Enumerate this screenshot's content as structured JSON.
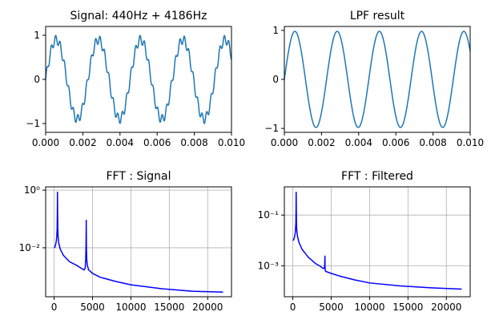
{
  "chart_data": [
    {
      "type": "line",
      "title": "Signal: 440Hz + 4186Hz",
      "xlabel": "",
      "ylabel": "",
      "xlim": [
        0,
        0.01
      ],
      "ylim": [
        -1.2,
        1.2
      ],
      "y_scale": "linear",
      "grid": false,
      "color": "#1f77b4",
      "x_ticks": [
        0,
        0.002,
        0.004,
        0.006,
        0.008,
        0.01
      ],
      "x_tick_labels": [
        "0.000",
        "0.002",
        "0.004",
        "0.006",
        "0.008",
        "0.010"
      ],
      "y_ticks": [
        -1,
        0,
        1
      ],
      "y_tick_labels": [
        "−1",
        "0",
        "1"
      ],
      "series": [
        {
          "components": [
            {
              "freq_hz": 440,
              "amplitude": 0.9
            },
            {
              "freq_hz": 4186,
              "amplitude": 0.1
            }
          ]
        }
      ]
    },
    {
      "type": "line",
      "title": "LPF result",
      "xlabel": "",
      "ylabel": "",
      "xlim": [
        0,
        0.01
      ],
      "ylim": [
        -1.08,
        1.08
      ],
      "y_scale": "linear",
      "grid": false,
      "color": "#1f77b4",
      "x_ticks": [
        0,
        0.002,
        0.004,
        0.006,
        0.008,
        0.01
      ],
      "x_tick_labels": [
        "0.000",
        "0.002",
        "0.004",
        "0.006",
        "0.008",
        "0.010"
      ],
      "y_ticks": [
        -1,
        0,
        1
      ],
      "y_tick_labels": [
        "−1",
        "0",
        "1"
      ],
      "series": [
        {
          "components": [
            {
              "freq_hz": 440,
              "amplitude": 0.98
            }
          ]
        }
      ]
    },
    {
      "type": "line",
      "title": "FFT : Signal",
      "xlabel": "",
      "ylabel": "",
      "xlim": [
        -1100,
        23100
      ],
      "ylim": [
        0.0002,
        1.3
      ],
      "y_scale": "log",
      "grid": true,
      "color": "#0000ff",
      "x_ticks": [
        0,
        5000,
        10000,
        15000,
        20000
      ],
      "x_tick_labels": [
        "0",
        "5000",
        "10000",
        "15000",
        "20000"
      ],
      "y_ticks": [
        0.01,
        1
      ],
      "y_tick_labels": [
        "10⁻²",
        "10⁰"
      ],
      "series": [
        {
          "x": [
            0,
            100,
            200,
            300,
            350,
            400,
            420,
            440,
            460,
            480,
            520,
            600,
            800,
            1200,
            2000,
            3000,
            3600,
            3900,
            4050,
            4120,
            4160,
            4180,
            4186,
            4192,
            4210,
            4250,
            4320,
            4500,
            5000,
            6000,
            8000,
            10000,
            14000,
            18000,
            22000
          ],
          "y": [
            0.01,
            0.0105,
            0.013,
            0.018,
            0.026,
            0.05,
            0.15,
            0.85,
            0.15,
            0.05,
            0.025,
            0.015,
            0.009,
            0.0055,
            0.0033,
            0.0024,
            0.0019,
            0.0017,
            0.002,
            0.004,
            0.015,
            0.05,
            0.09,
            0.04,
            0.01,
            0.004,
            0.0025,
            0.0017,
            0.0013,
            0.00095,
            0.00068,
            0.00052,
            0.00038,
            0.00031,
            0.00029
          ]
        }
      ]
    },
    {
      "type": "line",
      "title": "FFT : Filtered",
      "xlabel": "",
      "ylabel": "",
      "xlim": [
        -1100,
        23100
      ],
      "ylim": [
        6e-05,
        1.3
      ],
      "y_scale": "log",
      "grid": true,
      "color": "#0000ff",
      "x_ticks": [
        0,
        5000,
        10000,
        15000,
        20000
      ],
      "x_tick_labels": [
        "0",
        "5000",
        "10000",
        "15000",
        "20000"
      ],
      "y_ticks": [
        0.001,
        0.1
      ],
      "y_tick_labels": [
        "10⁻³",
        "10⁻¹"
      ],
      "series": [
        {
          "x": [
            0,
            100,
            200,
            300,
            350,
            400,
            420,
            440,
            460,
            480,
            520,
            600,
            800,
            1200,
            2000,
            3000,
            3600,
            3900,
            4050,
            4140,
            4170,
            4186,
            4200,
            4230,
            4300,
            4500,
            5000,
            6000,
            8000,
            10000,
            14000,
            18000,
            22000
          ],
          "y": [
            0.01,
            0.0105,
            0.013,
            0.018,
            0.026,
            0.05,
            0.15,
            0.8,
            0.15,
            0.05,
            0.025,
            0.015,
            0.0085,
            0.0045,
            0.0022,
            0.0012,
            0.00095,
            0.0008,
            0.00078,
            0.0009,
            0.0015,
            0.0024,
            0.0009,
            0.00065,
            0.0006,
            0.00057,
            0.0005,
            0.0004,
            0.00028,
            0.00021,
            0.00016,
            0.000135,
            0.00012
          ]
        }
      ]
    }
  ]
}
